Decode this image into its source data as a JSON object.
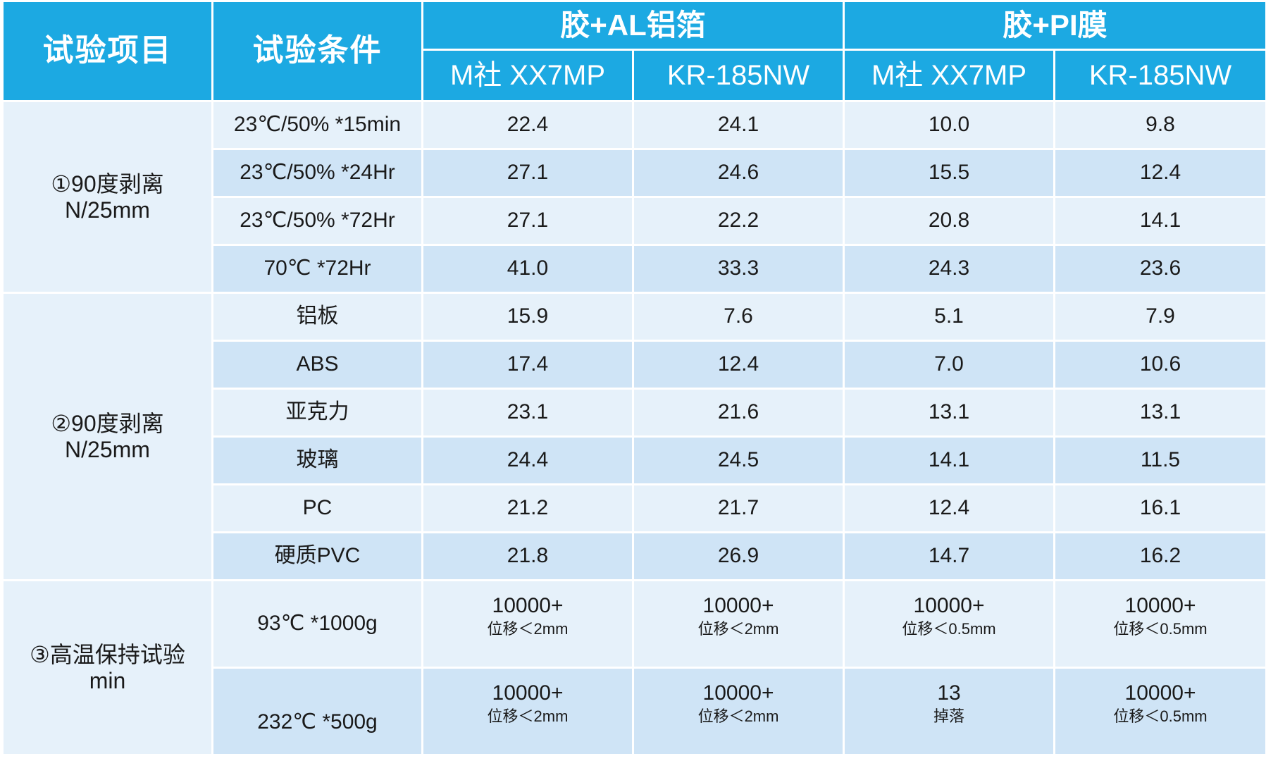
{
  "header": {
    "item": "试验项目",
    "condition": "试验条件",
    "groups": [
      "胶+AL铝箔",
      "胶+PI膜"
    ],
    "products": [
      "M社 XX7MP",
      "KR-185NW",
      "M社 XX7MP",
      "KR-185NW"
    ]
  },
  "sections": [
    {
      "label_line1": "①90度剥离",
      "label_line2": "N/25mm",
      "rows": [
        {
          "condition": "23℃/50% *15min",
          "values": [
            "22.4",
            "24.1",
            "10.0",
            "9.8"
          ]
        },
        {
          "condition": "23℃/50% *24Hr",
          "values": [
            "27.1",
            "24.6",
            "15.5",
            "12.4"
          ]
        },
        {
          "condition": "23℃/50% *72Hr",
          "values": [
            "27.1",
            "22.2",
            "20.8",
            "14.1"
          ]
        },
        {
          "condition": "70℃ *72Hr",
          "values": [
            "41.0",
            "33.3",
            "24.3",
            "23.6"
          ]
        }
      ]
    },
    {
      "label_line1": "②90度剥离",
      "label_line2": "N/25mm",
      "rows": [
        {
          "condition": "铝板",
          "values": [
            "15.9",
            "7.6",
            "5.1",
            "7.9"
          ]
        },
        {
          "condition": "ABS",
          "values": [
            "17.4",
            "12.4",
            "7.0",
            "10.6"
          ]
        },
        {
          "condition": "亚克力",
          "values": [
            "23.1",
            "21.6",
            "13.1",
            "13.1"
          ]
        },
        {
          "condition": "玻璃",
          "values": [
            "24.4",
            "24.5",
            "14.1",
            "11.5"
          ]
        },
        {
          "condition": "PC",
          "values": [
            "21.2",
            "21.7",
            "12.4",
            "16.1"
          ]
        },
        {
          "condition": "硬质PVC",
          "values": [
            "21.8",
            "26.9",
            "14.7",
            "16.2"
          ]
        }
      ]
    },
    {
      "label_line1": "③高温保持试验",
      "label_line2": "min",
      "rows": [
        {
          "condition": "93℃ *1000g",
          "values": [
            {
              "main": "10000+",
              "note": "位移＜2mm"
            },
            {
              "main": "10000+",
              "note": "位移＜2mm"
            },
            {
              "main": "10000+",
              "note": "位移＜0.5mm"
            },
            {
              "main": "10000+",
              "note": "位移＜0.5mm"
            }
          ]
        },
        {
          "condition": "232℃ *500g",
          "values": [
            {
              "main": "10000+",
              "note": "位移＜2mm"
            },
            {
              "main": "10000+",
              "note": "位移＜2mm"
            },
            {
              "main": "13",
              "note": "掉落"
            },
            {
              "main": "10000+",
              "note": "位移＜0.5mm"
            }
          ]
        }
      ]
    }
  ]
}
